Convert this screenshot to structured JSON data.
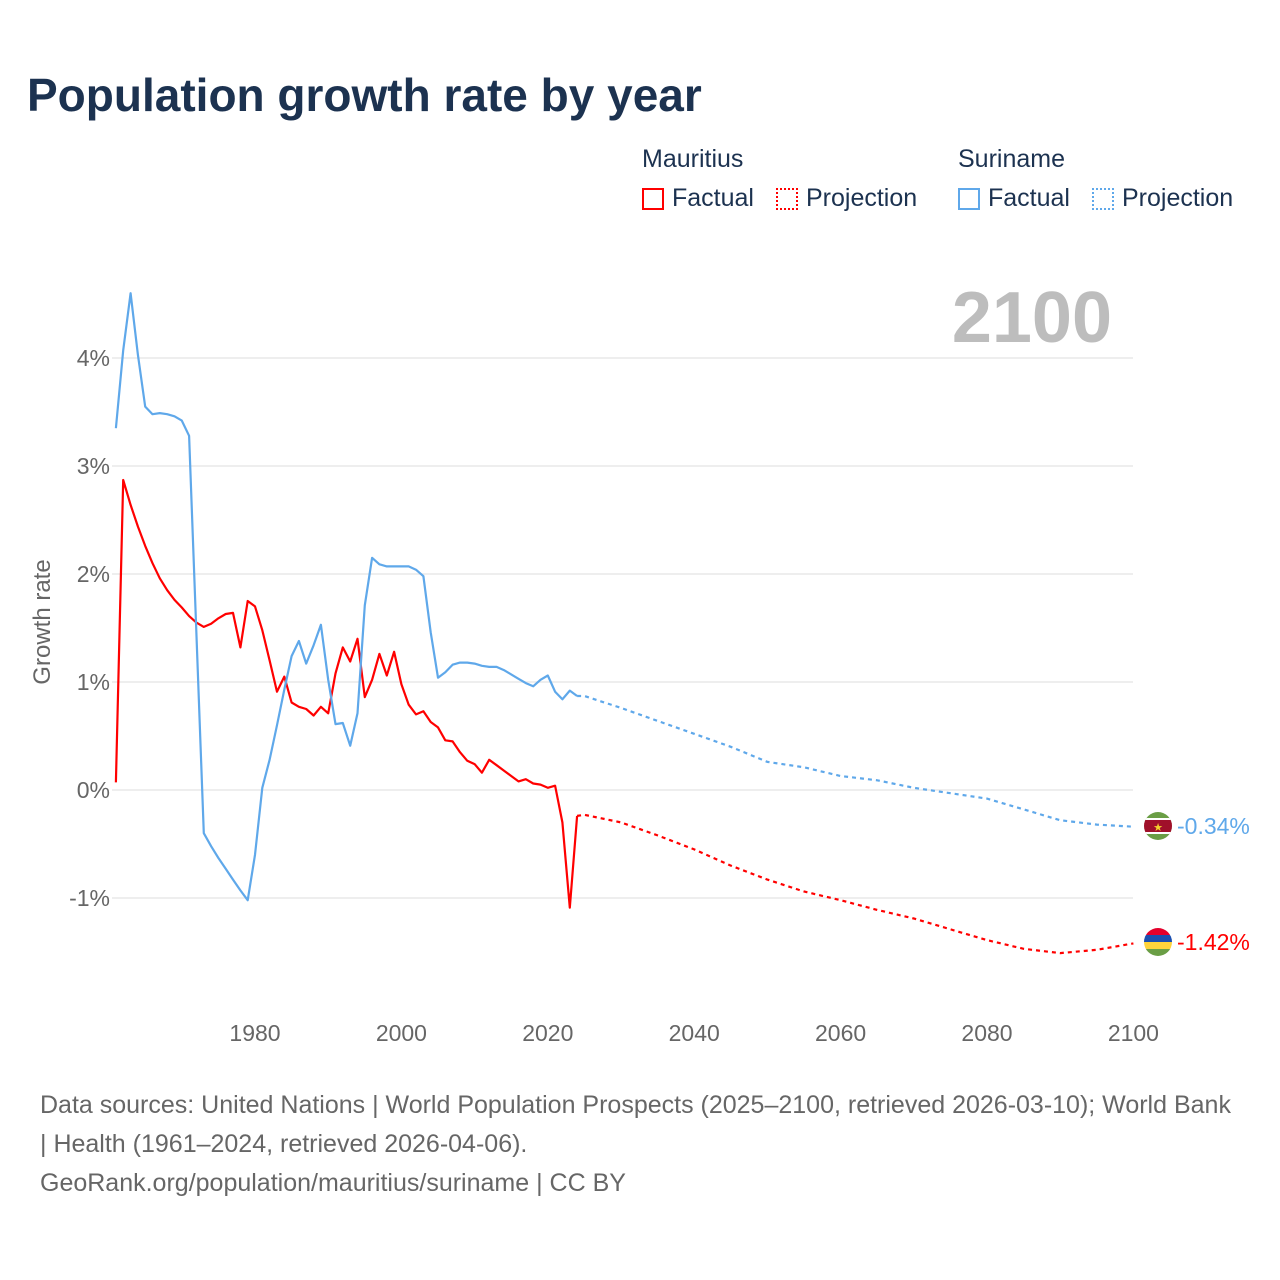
{
  "title": "Population growth rate by year",
  "legend": {
    "groups": [
      {
        "country": "Mauritius",
        "color": "#ff0000",
        "factual": "Factual",
        "projection": "Projection"
      },
      {
        "country": "Suriname",
        "color": "#5fa8ea",
        "factual": "Factual",
        "projection": "Projection"
      }
    ]
  },
  "footer": {
    "sources": "Data sources: United Nations | World Population Prospects (2025–2100, retrieved 2026-03-10); World Bank | Health (1961–2024, retrieved 2026-04-06).",
    "link": "GeoRank.org/population/mauritius/suriname | CC BY"
  },
  "chart_data": {
    "type": "line",
    "title": "Population growth rate by year",
    "ylabel": "Growth rate",
    "xlabel": "",
    "year_label": "2100",
    "xlim": [
      1961,
      2100
    ],
    "ylim": [
      -1.9,
      4.7
    ],
    "xticks": [
      1980,
      2000,
      2020,
      2040,
      2060,
      2080,
      2100
    ],
    "xtick_labels": [
      "1980",
      "2000",
      "2020",
      "2040",
      "2060",
      "2080",
      "2100"
    ],
    "yticks": [
      -1,
      0,
      1,
      2,
      3,
      4
    ],
    "ytick_labels": [
      "-1%",
      "0%",
      "1%",
      "2%",
      "3%",
      "4%"
    ],
    "grid": true,
    "series": [
      {
        "name": "Mauritius",
        "color": "#ff0000",
        "end_label": "-1.42%",
        "factual": {
          "x": [
            1961,
            1962,
            1963,
            1964,
            1965,
            1966,
            1967,
            1968,
            1969,
            1970,
            1971,
            1972,
            1973,
            1974,
            1975,
            1976,
            1977,
            1978,
            1979,
            1980,
            1981,
            1982,
            1983,
            1984,
            1985,
            1986,
            1987,
            1988,
            1989,
            1990,
            1991,
            1992,
            1993,
            1994,
            1995,
            1996,
            1997,
            1998,
            1999,
            2000,
            2001,
            2002,
            2003,
            2004,
            2005,
            2006,
            2007,
            2008,
            2009,
            2010,
            2011,
            2012,
            2013,
            2014,
            2015,
            2016,
            2017,
            2018,
            2019,
            2020,
            2021,
            2022,
            2023,
            2024
          ],
          "y": [
            0.07,
            2.87,
            2.64,
            2.44,
            2.26,
            2.1,
            1.96,
            1.85,
            1.76,
            1.69,
            1.61,
            1.55,
            1.51,
            1.54,
            1.59,
            1.63,
            1.64,
            1.32,
            1.75,
            1.7,
            1.48,
            1.2,
            0.91,
            1.05,
            0.81,
            0.77,
            0.75,
            0.69,
            0.77,
            0.71,
            1.08,
            1.32,
            1.19,
            1.4,
            0.86,
            1.02,
            1.26,
            1.06,
            1.28,
            0.98,
            0.79,
            0.7,
            0.73,
            0.63,
            0.58,
            0.46,
            0.45,
            0.35,
            0.27,
            0.24,
            0.16,
            0.28,
            0.23,
            0.18,
            0.13,
            0.08,
            0.1,
            0.06,
            0.05,
            0.02,
            0.04,
            -0.3,
            -1.09,
            -0.24
          ]
        },
        "projection": {
          "x": [
            2024,
            2025,
            2030,
            2035,
            2040,
            2045,
            2050,
            2055,
            2060,
            2065,
            2070,
            2075,
            2080,
            2085,
            2090,
            2095,
            2100
          ],
          "y": [
            -0.24,
            -0.23,
            -0.3,
            -0.42,
            -0.55,
            -0.7,
            -0.83,
            -0.94,
            -1.02,
            -1.11,
            -1.19,
            -1.29,
            -1.39,
            -1.47,
            -1.51,
            -1.48,
            -1.42
          ]
        }
      },
      {
        "name": "Suriname",
        "color": "#5fa8ea",
        "end_label": "-0.34%",
        "factual": {
          "x": [
            1961,
            1962,
            1963,
            1964,
            1965,
            1966,
            1967,
            1968,
            1969,
            1970,
            1971,
            1972,
            1973,
            1974,
            1975,
            1976,
            1977,
            1978,
            1979,
            1980,
            1981,
            1982,
            1983,
            1984,
            1985,
            1986,
            1987,
            1988,
            1989,
            1990,
            1991,
            1992,
            1993,
            1994,
            1995,
            1996,
            1997,
            1998,
            1999,
            2000,
            2001,
            2002,
            2003,
            2004,
            2005,
            2006,
            2007,
            2008,
            2009,
            2010,
            2011,
            2012,
            2013,
            2014,
            2015,
            2016,
            2017,
            2018,
            2019,
            2020,
            2021,
            2022,
            2023,
            2024
          ],
          "y": [
            3.35,
            4.07,
            4.6,
            4.03,
            3.55,
            3.48,
            3.49,
            3.48,
            3.46,
            3.42,
            3.28,
            1.45,
            -0.4,
            -0.52,
            -0.63,
            -0.73,
            -0.83,
            -0.93,
            -1.02,
            -0.6,
            0.02,
            0.28,
            0.6,
            0.93,
            1.24,
            1.38,
            1.17,
            1.34,
            1.53,
            1.02,
            0.61,
            0.62,
            0.41,
            0.71,
            1.71,
            2.15,
            2.09,
            2.07,
            2.07,
            2.07,
            2.07,
            2.04,
            1.98,
            1.46,
            1.04,
            1.09,
            1.16,
            1.18,
            1.18,
            1.17,
            1.15,
            1.14,
            1.14,
            1.11,
            1.07,
            1.03,
            0.99,
            0.96,
            1.02,
            1.06,
            0.91,
            0.84,
            0.92,
            0.87
          ]
        },
        "projection": {
          "x": [
            2024,
            2025,
            2030,
            2035,
            2040,
            2045,
            2050,
            2055,
            2060,
            2065,
            2070,
            2075,
            2080,
            2085,
            2090,
            2095,
            2100
          ],
          "y": [
            0.87,
            0.87,
            0.76,
            0.64,
            0.52,
            0.4,
            0.26,
            0.21,
            0.13,
            0.09,
            0.02,
            -0.03,
            -0.08,
            -0.18,
            -0.28,
            -0.32,
            -0.34
          ]
        }
      }
    ]
  }
}
